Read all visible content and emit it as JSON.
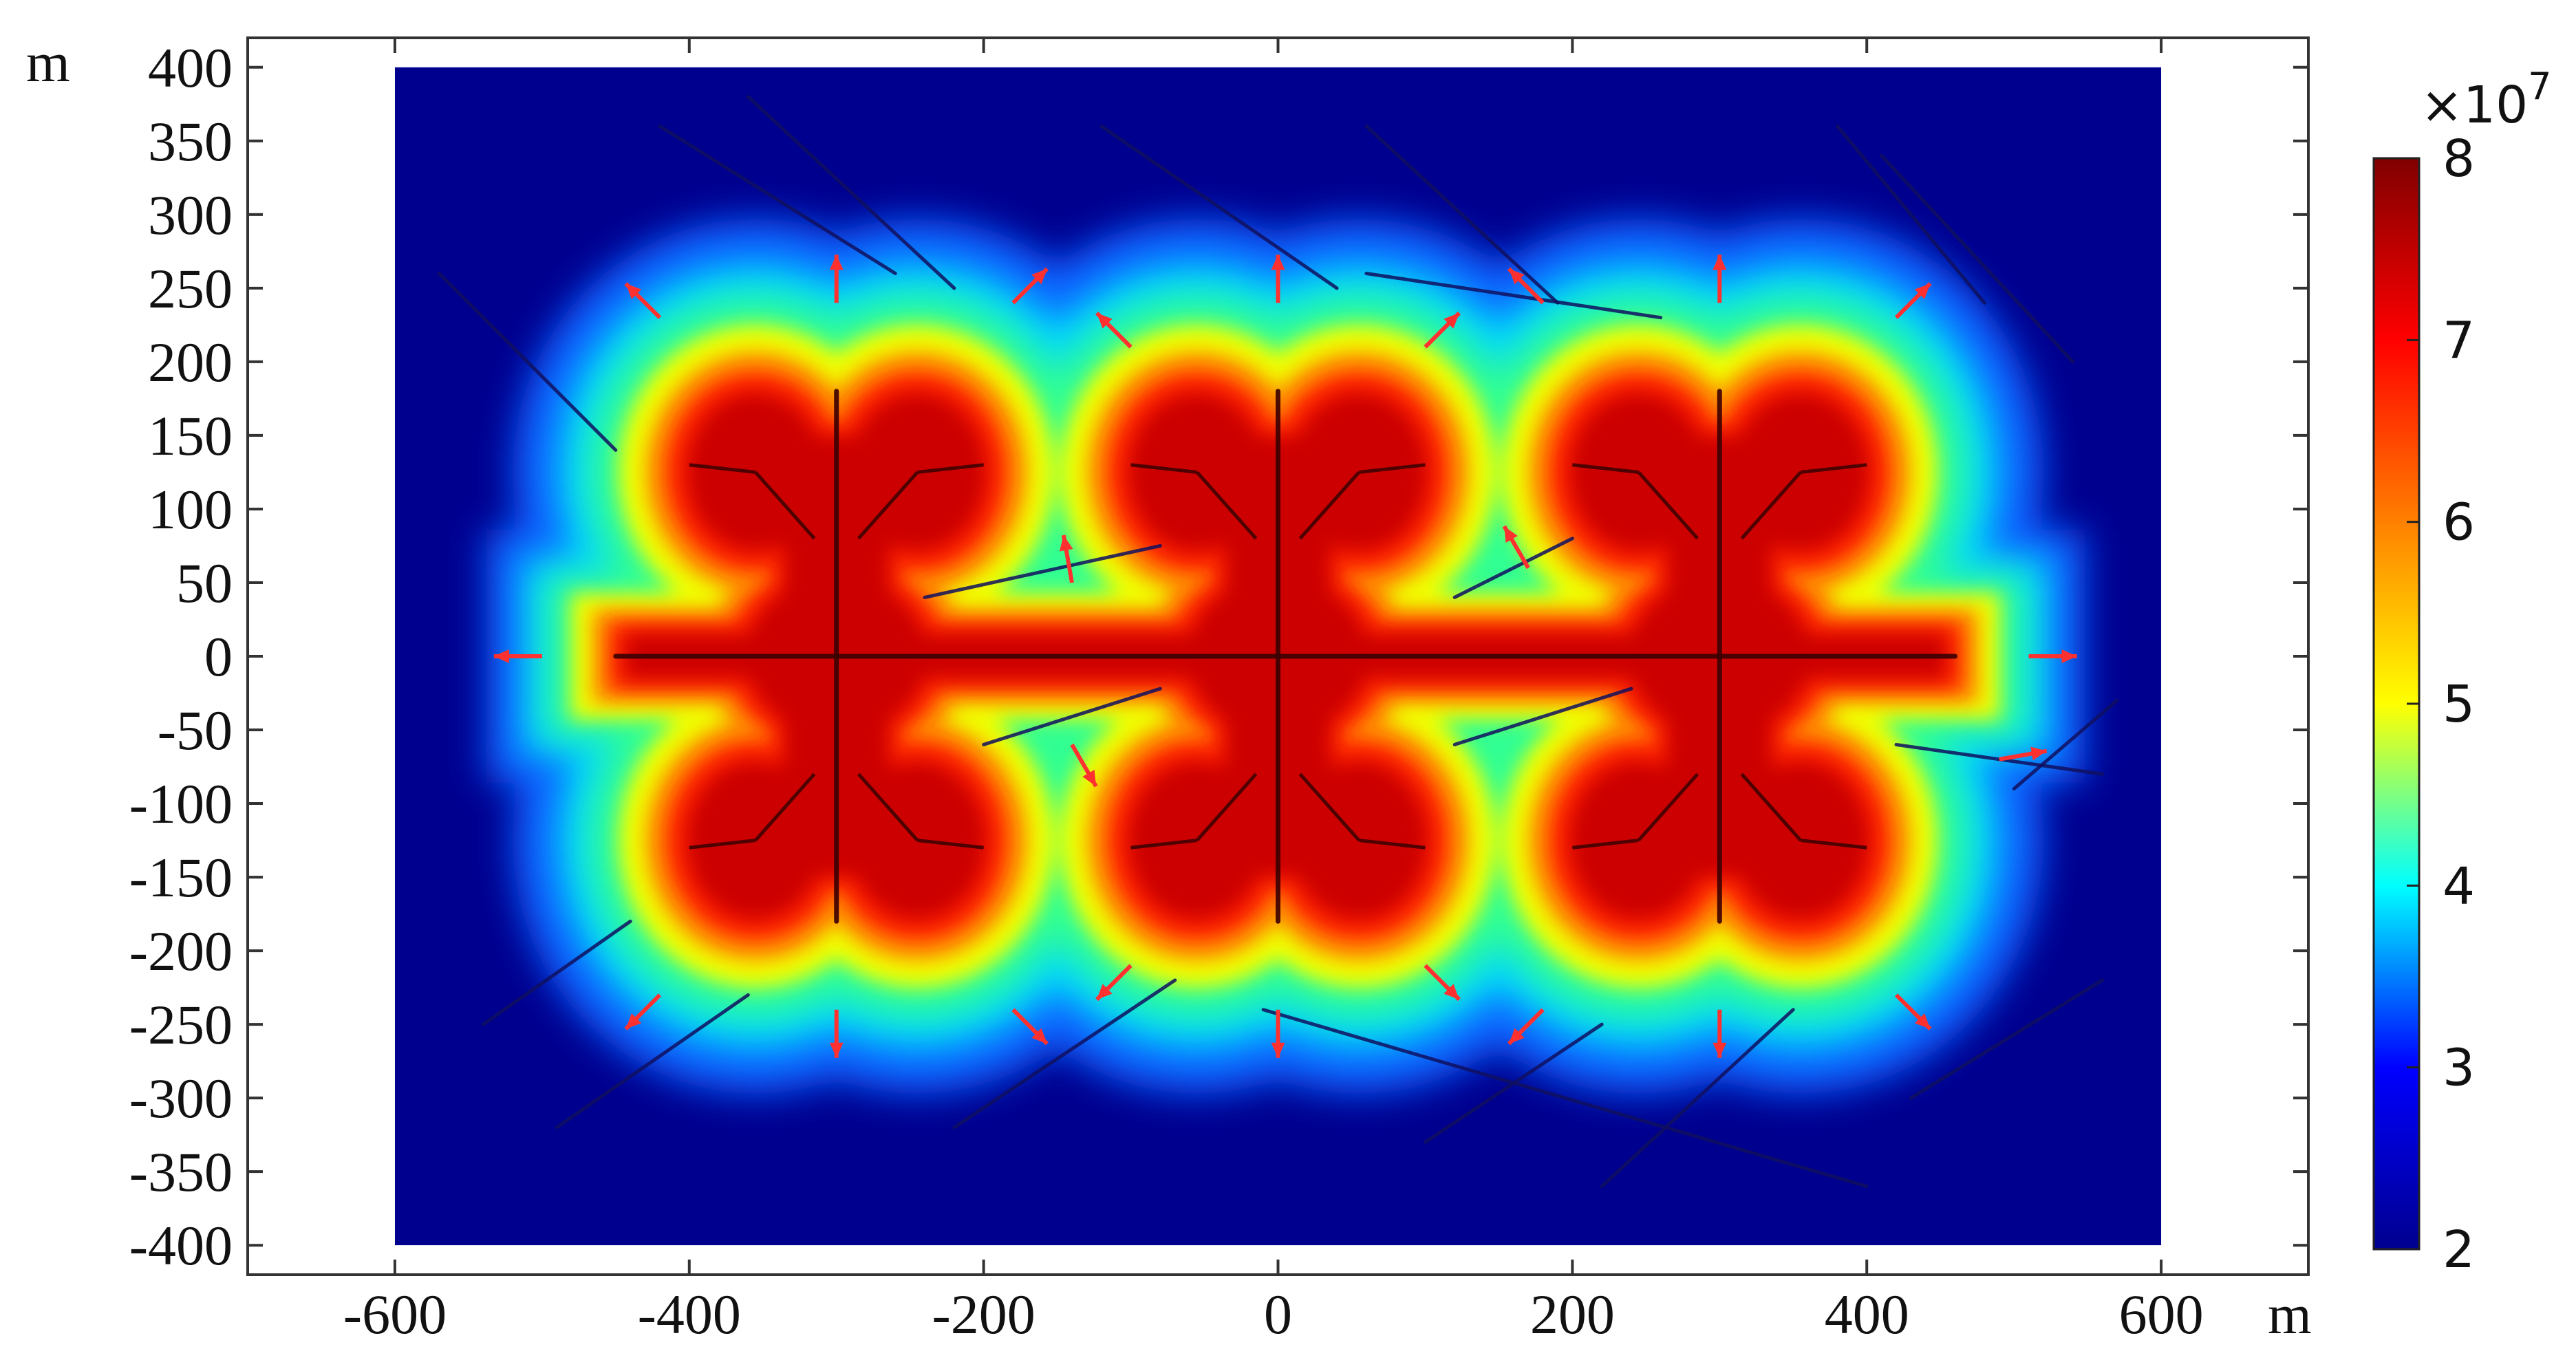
{
  "chart_data": {
    "type": "heatmap",
    "title": "",
    "x_unit_label": "m",
    "y_unit_label": "m",
    "xlim": [
      -700,
      700
    ],
    "ylim": [
      -420,
      420
    ],
    "domain_x": [
      -600,
      600
    ],
    "domain_y": [
      -400,
      400
    ],
    "x_ticks": [
      -600,
      -400,
      -200,
      0,
      200,
      400,
      600
    ],
    "x_tick_labels": [
      "-600",
      "-400",
      "-200",
      "0",
      "200",
      "400",
      "600"
    ],
    "y_ticks": [
      400,
      350,
      300,
      250,
      200,
      150,
      100,
      50,
      0,
      -50,
      -100,
      -150,
      -200,
      -250,
      -300,
      -350,
      -400
    ],
    "y_tick_labels": [
      "400",
      "350",
      "300",
      "250",
      "200",
      "150",
      "100",
      "50",
      "0",
      "-50",
      "-100",
      "-150",
      "-200",
      "-250",
      "-300",
      "-350",
      "-400"
    ],
    "colorbar": {
      "multiplier": "×10",
      "exponent": "7",
      "range": [
        2,
        8
      ],
      "ticks": [
        8,
        7,
        6,
        5,
        4,
        3,
        2
      ],
      "tick_labels": [
        "8",
        "7",
        "6",
        "5",
        "4",
        "3",
        "2"
      ],
      "colormap": [
        "#00008f",
        "#0000ff",
        "#00ffff",
        "#ffff00",
        "#ff8000",
        "#ff0000",
        "#800000"
      ]
    },
    "wells": [
      {
        "x": -300,
        "y": 0
      },
      {
        "x": 0,
        "y": 0
      },
      {
        "x": 300,
        "y": 0
      }
    ],
    "fractures": [
      {
        "from": [
          -450,
          0
        ],
        "to": [
          460,
          0
        ]
      },
      {
        "from": [
          -300,
          -180
        ],
        "to": [
          -300,
          180
        ]
      },
      {
        "from": [
          0,
          -180
        ],
        "to": [
          0,
          180
        ]
      },
      {
        "from": [
          300,
          -180
        ],
        "to": [
          300,
          180
        ]
      },
      {
        "from": [
          -240,
          40
        ],
        "to": [
          -80,
          75
        ]
      },
      {
        "from": [
          -200,
          -60
        ],
        "to": [
          -80,
          -22
        ]
      },
      {
        "from": [
          120,
          40
        ],
        "to": [
          200,
          80
        ]
      },
      {
        "from": [
          120,
          -60
        ],
        "to": [
          240,
          -22
        ]
      },
      {
        "from": [
          -420,
          360
        ],
        "to": [
          -260,
          260
        ]
      },
      {
        "from": [
          -360,
          380
        ],
        "to": [
          -220,
          250
        ]
      },
      {
        "from": [
          -120,
          360
        ],
        "to": [
          40,
          250
        ]
      },
      {
        "from": [
          60,
          360
        ],
        "to": [
          190,
          240
        ]
      },
      {
        "from": [
          60,
          260
        ],
        "to": [
          260,
          230
        ]
      },
      {
        "from": [
          380,
          360
        ],
        "to": [
          480,
          240
        ]
      },
      {
        "from": [
          410,
          340
        ],
        "to": [
          540,
          200
        ]
      },
      {
        "from": [
          -570,
          260
        ],
        "to": [
          -450,
          140
        ]
      },
      {
        "from": [
          -540,
          -250
        ],
        "to": [
          -440,
          -180
        ]
      },
      {
        "from": [
          -490,
          -320
        ],
        "to": [
          -360,
          -230
        ]
      },
      {
        "from": [
          -220,
          -320
        ],
        "to": [
          -70,
          -220
        ]
      },
      {
        "from": [
          -10,
          -240
        ],
        "to": [
          400,
          -360
        ]
      },
      {
        "from": [
          100,
          -330
        ],
        "to": [
          220,
          -250
        ]
      },
      {
        "from": [
          220,
          -360
        ],
        "to": [
          350,
          -240
        ]
      },
      {
        "from": [
          430,
          -300
        ],
        "to": [
          560,
          -220
        ]
      },
      {
        "from": [
          500,
          -90
        ],
        "to": [
          570,
          -30
        ]
      },
      {
        "from": [
          420,
          -60
        ],
        "to": [
          560,
          -80
        ]
      }
    ],
    "flux_arrows": [
      {
        "x": -420,
        "y": 230,
        "angle": 135
      },
      {
        "x": -300,
        "y": 240,
        "angle": 90
      },
      {
        "x": -180,
        "y": 240,
        "angle": 45
      },
      {
        "x": -100,
        "y": 210,
        "angle": 135
      },
      {
        "x": 0,
        "y": 240,
        "angle": 90
      },
      {
        "x": 100,
        "y": 210,
        "angle": 45
      },
      {
        "x": 180,
        "y": 240,
        "angle": 135
      },
      {
        "x": 300,
        "y": 240,
        "angle": 90
      },
      {
        "x": 420,
        "y": 230,
        "angle": 45
      },
      {
        "x": -500,
        "y": 0,
        "angle": 180
      },
      {
        "x": 510,
        "y": 0,
        "angle": 0
      },
      {
        "x": -420,
        "y": -230,
        "angle": 225
      },
      {
        "x": -300,
        "y": -240,
        "angle": 270
      },
      {
        "x": -180,
        "y": -240,
        "angle": 315
      },
      {
        "x": -100,
        "y": -210,
        "angle": 225
      },
      {
        "x": 0,
        "y": -240,
        "angle": 270
      },
      {
        "x": 100,
        "y": -210,
        "angle": 315
      },
      {
        "x": 180,
        "y": -240,
        "angle": 225
      },
      {
        "x": 300,
        "y": -240,
        "angle": 270
      },
      {
        "x": 420,
        "y": -230,
        "angle": 315
      },
      {
        "x": -140,
        "y": 50,
        "angle": 100
      },
      {
        "x": 170,
        "y": 60,
        "angle": 120
      },
      {
        "x": -140,
        "y": -60,
        "angle": 300
      },
      {
        "x": 490,
        "y": -70,
        "angle": 10
      }
    ]
  }
}
